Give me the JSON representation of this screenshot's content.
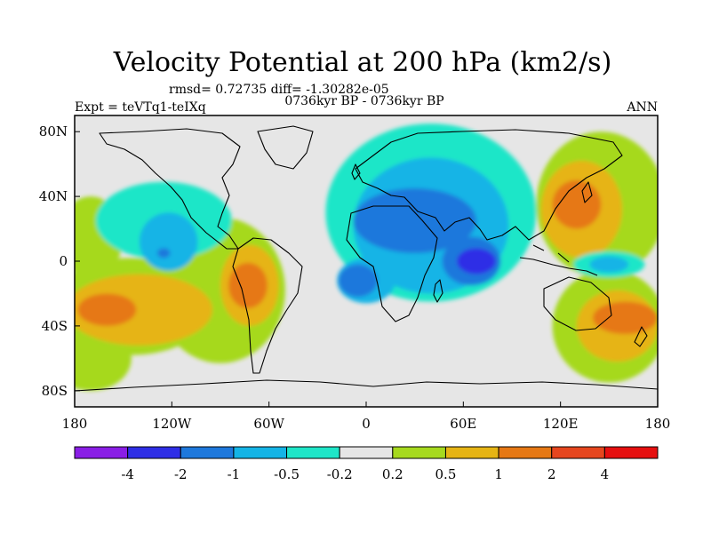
{
  "chart_data": {
    "type": "heatmap",
    "title": "Velocity Potential at 200 hPa (km2/s)",
    "stats_line": "rmsd= 0.72735 diff= -1.30282e-05",
    "left_label": "Expt = teVTq1-teIXq",
    "center_label": "0736kyr BP - 0736kyr BP",
    "right_label": "ANN",
    "xlim": [
      -180,
      180
    ],
    "ylim": [
      -90,
      90
    ],
    "x_ticks": [
      {
        "value": -180,
        "label": "180"
      },
      {
        "value": -120,
        "label": "120W"
      },
      {
        "value": -60,
        "label": "60W"
      },
      {
        "value": 0,
        "label": "0"
      },
      {
        "value": 60,
        "label": "60E"
      },
      {
        "value": 120,
        "label": "120E"
      },
      {
        "value": 180,
        "label": "180"
      }
    ],
    "y_ticks": [
      {
        "value": 80,
        "label": "80N"
      },
      {
        "value": 40,
        "label": "40N"
      },
      {
        "value": 0,
        "label": "0"
      },
      {
        "value": -40,
        "label": "40S"
      },
      {
        "value": -80,
        "label": "80S"
      }
    ],
    "colorbar": {
      "colors": [
        "#8a1ee6",
        "#2e2ee6",
        "#1e78dc",
        "#14b4e6",
        "#1ee6c8",
        "#e6e6e6",
        "#a6d91e",
        "#e6b414",
        "#e67814",
        "#e6461e",
        "#e60f0f"
      ],
      "labels": [
        "-4",
        "-2",
        "-1",
        "-0.5",
        "-0.2",
        "0.2",
        "0.5",
        "1",
        "2",
        "4"
      ]
    },
    "fields": [
      {
        "level": 0.5,
        "color": "#a6d91e",
        "lon": -145,
        "lat": -28,
        "rlon": 50,
        "rlat": 30
      },
      {
        "level": 0.5,
        "color": "#a6d91e",
        "lon": -90,
        "lat": -18,
        "rlon": 40,
        "rlat": 45
      },
      {
        "level": 0.5,
        "color": "#a6d91e",
        "lon": 145,
        "lat": 35,
        "rlon": 40,
        "rlat": 45
      },
      {
        "level": 0.5,
        "color": "#a6d91e",
        "lon": 150,
        "lat": -40,
        "rlon": 35,
        "rlat": 35
      },
      {
        "level": 0.5,
        "color": "#a6d91e",
        "lon": -170,
        "lat": 15,
        "rlon": 20,
        "rlat": 25
      },
      {
        "level": 0.5,
        "color": "#a6d91e",
        "lon": -170,
        "lat": -60,
        "rlon": 25,
        "rlat": 20
      },
      {
        "level": 1,
        "color": "#e6b414",
        "lon": -140,
        "lat": -30,
        "rlon": 45,
        "rlat": 22
      },
      {
        "level": 1,
        "color": "#e6b414",
        "lon": -72,
        "lat": -15,
        "rlon": 18,
        "rlat": 25
      },
      {
        "level": 1,
        "color": "#e6b414",
        "lon": 133,
        "lat": 32,
        "rlon": 25,
        "rlat": 30
      },
      {
        "level": 1,
        "color": "#e6b414",
        "lon": 155,
        "lat": -40,
        "rlon": 25,
        "rlat": 22
      },
      {
        "level": 2,
        "color": "#e67814",
        "lon": -160,
        "lat": -30,
        "rlon": 18,
        "rlat": 10
      },
      {
        "level": 2,
        "color": "#e67814",
        "lon": -73,
        "lat": -15,
        "rlon": 12,
        "rlat": 14
      },
      {
        "level": 2,
        "color": "#e67814",
        "lon": 130,
        "lat": 35,
        "rlon": 15,
        "rlat": 15
      },
      {
        "level": 2,
        "color": "#e67814",
        "lon": 160,
        "lat": -35,
        "rlon": 20,
        "rlat": 10
      },
      {
        "level": -0.5,
        "color": "#1ee6c8",
        "lon": 40,
        "lat": 30,
        "rlon": 65,
        "rlat": 55
      },
      {
        "level": -0.5,
        "color": "#1ee6c8",
        "lon": -125,
        "lat": 25,
        "rlon": 42,
        "rlat": 24
      },
      {
        "level": -0.5,
        "color": "#1ee6c8",
        "lon": 150,
        "lat": -2,
        "rlon": 22,
        "rlat": 8
      },
      {
        "level": -1,
        "color": "#14b4e6",
        "lon": 40,
        "lat": 22,
        "rlon": 48,
        "rlat": 42
      },
      {
        "level": -1,
        "color": "#14b4e6",
        "lon": -122,
        "lat": 12,
        "rlon": 18,
        "rlat": 18
      },
      {
        "level": -1,
        "color": "#14b4e6",
        "lon": 0,
        "lat": -12,
        "rlon": 18,
        "rlat": 14
      },
      {
        "level": -1,
        "color": "#14b4e6",
        "lon": 150,
        "lat": -2,
        "rlon": 12,
        "rlat": 5
      },
      {
        "level": -2,
        "color": "#1e78dc",
        "lon": 30,
        "lat": 25,
        "rlon": 38,
        "rlat": 20
      },
      {
        "level": -2,
        "color": "#1e78dc",
        "lon": 65,
        "lat": 0,
        "rlon": 18,
        "rlat": 15
      },
      {
        "level": -2,
        "color": "#1e78dc",
        "lon": -5,
        "lat": -12,
        "rlon": 12,
        "rlat": 10
      },
      {
        "level": -2,
        "color": "#1e78dc",
        "lon": -125,
        "lat": 5,
        "rlon": 4,
        "rlat": 3
      },
      {
        "level": -4,
        "color": "#2e2ee6",
        "lon": 68,
        "lat": 0,
        "rlon": 12,
        "rlat": 8
      }
    ]
  }
}
